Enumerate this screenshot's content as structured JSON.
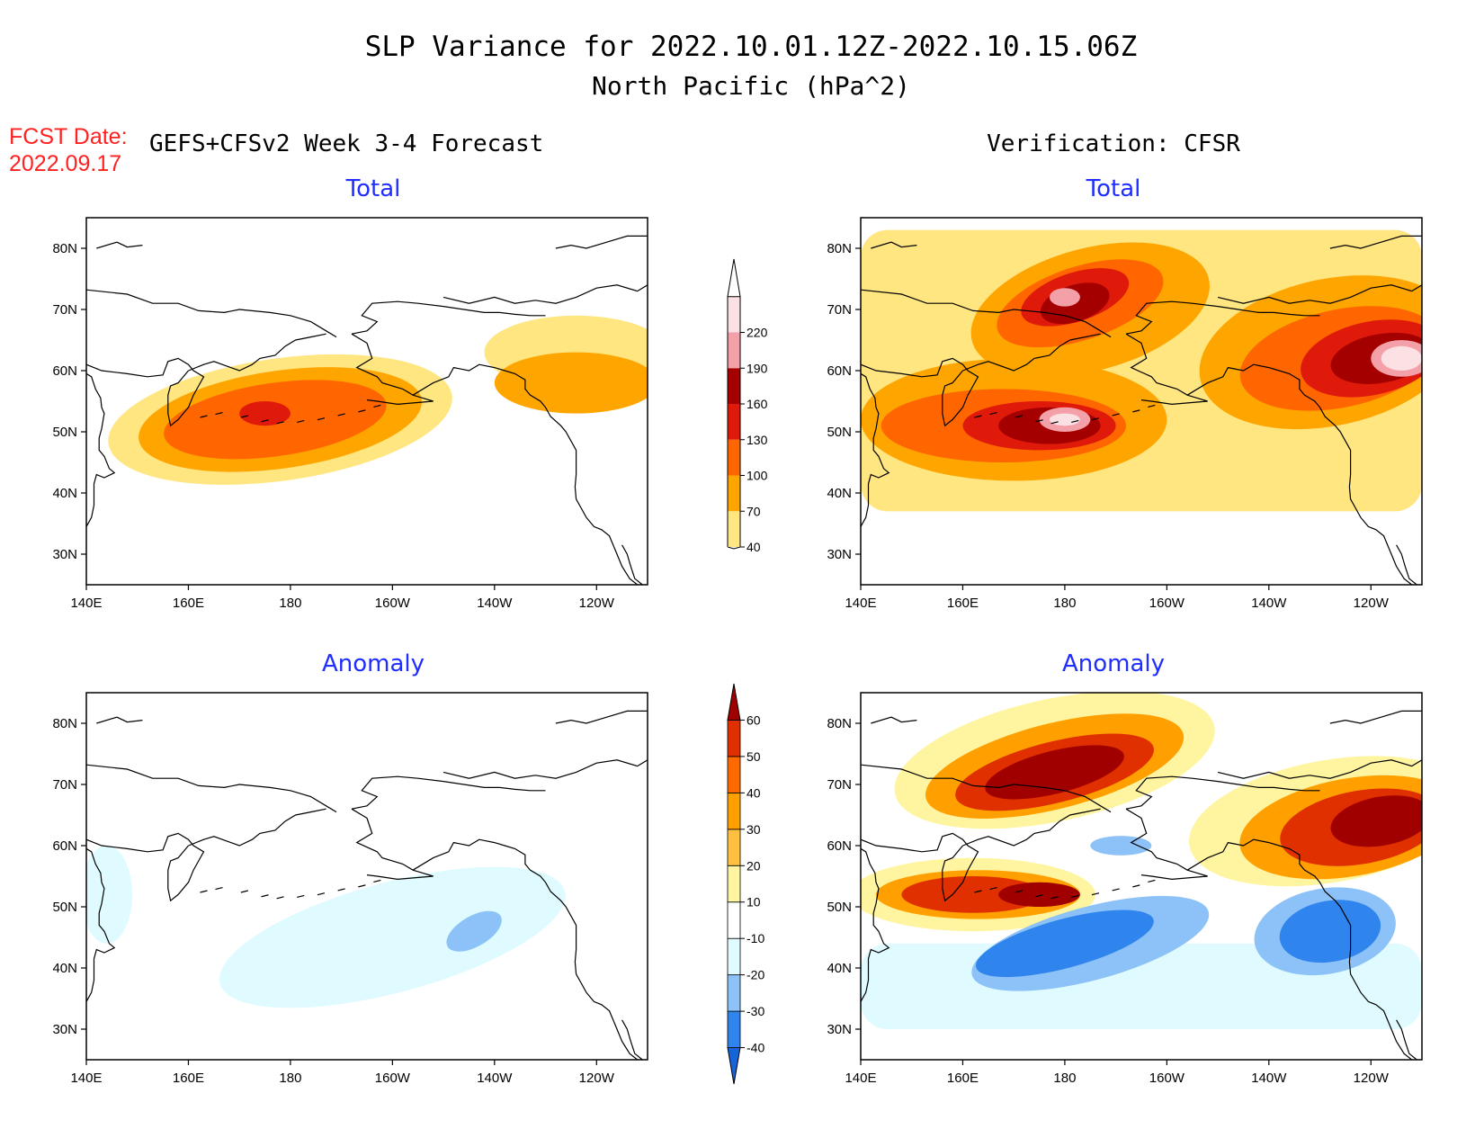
{
  "header": {
    "title_line1": "SLP Variance for 2022.10.01.12Z-2022.10.15.06Z",
    "title_line2": "North Pacific (hPa^2)",
    "fcst_label": "FCST Date:",
    "fcst_date": "2022.09.17",
    "left_heading": "GEFS+CFSv2 Week 3-4 Forecast",
    "right_heading": "Verification: CFSR"
  },
  "panels": [
    {
      "id": "fcst-total",
      "title": "Total"
    },
    {
      "id": "cfsr-total",
      "title": "Total"
    },
    {
      "id": "fcst-anomaly",
      "title": "Anomaly"
    },
    {
      "id": "cfsr-anomaly",
      "title": "Anomaly"
    }
  ],
  "axes": {
    "lon_labels": [
      "140E",
      "160E",
      "180",
      "160W",
      "140W",
      "120W"
    ],
    "lat_labels": [
      "80N",
      "70N",
      "60N",
      "50N",
      "40N",
      "30N"
    ],
    "lon_range": [
      140,
      250
    ],
    "lat_range": [
      25,
      85
    ]
  },
  "colorbars": {
    "total": {
      "levels": [
        "40",
        "70",
        "100",
        "130",
        "160",
        "190",
        "220"
      ],
      "colors": [
        "#ffe680",
        "#ffa500",
        "#ff6600",
        "#e01a0a",
        "#a50000",
        "#f4a0a8",
        "#fbe0e4"
      ]
    },
    "anomaly": {
      "levels": [
        "-40",
        "-30",
        "-20",
        "-10",
        "10",
        "20",
        "30",
        "40",
        "50",
        "60"
      ],
      "colors": [
        "#1565d8",
        "#2f84ee",
        "#8cc2f7",
        "#dffbff",
        "#ffffff",
        "#fff5a0",
        "#ffc040",
        "#ffa000",
        "#ff6a00",
        "#e03000",
        "#a00000"
      ]
    }
  },
  "chart_data": [
    {
      "type": "heatmap",
      "title": "Total",
      "subtitle": "GEFS+CFSv2 Week 3-4 Forecast",
      "units": "hPa^2",
      "features": [
        {
          "shape": "ellipse",
          "center_lon": 178,
          "center_lat": 52,
          "rx_deg": 34,
          "ry_deg": 10,
          "rotate": -8,
          "value": 40
        },
        {
          "shape": "ellipse",
          "center_lon": 236,
          "center_lat": 63,
          "rx_deg": 18,
          "ry_deg": 6,
          "rotate": 0,
          "value": 40
        },
        {
          "shape": "ellipse",
          "center_lon": 178,
          "center_lat": 52,
          "rx_deg": 28,
          "ry_deg": 8,
          "rotate": -8,
          "value": 70
        },
        {
          "shape": "ellipse",
          "center_lon": 236,
          "center_lat": 58,
          "rx_deg": 16,
          "ry_deg": 5,
          "rotate": 0,
          "value": 70
        },
        {
          "shape": "ellipse",
          "center_lon": 177,
          "center_lat": 52,
          "rx_deg": 22,
          "ry_deg": 6,
          "rotate": -8,
          "value": 100
        },
        {
          "shape": "ellipse",
          "center_lon": 175,
          "center_lat": 53,
          "rx_deg": 5,
          "ry_deg": 2,
          "rotate": 0,
          "value": 130
        }
      ]
    },
    {
      "type": "heatmap",
      "title": "Total",
      "subtitle": "Verification: CFSR",
      "units": "hPa^2",
      "features": [
        {
          "shape": "rect",
          "lon1": 140,
          "lat1": 37,
          "lon2": 250,
          "lat2": 83,
          "value": 40
        },
        {
          "shape": "ellipse",
          "center_lon": 185,
          "center_lat": 70,
          "rx_deg": 24,
          "ry_deg": 10,
          "rotate": -15,
          "value": 70
        },
        {
          "shape": "ellipse",
          "center_lon": 170,
          "center_lat": 52,
          "rx_deg": 30,
          "ry_deg": 10,
          "rotate": 0,
          "value": 70
        },
        {
          "shape": "ellipse",
          "center_lon": 232,
          "center_lat": 63,
          "rx_deg": 26,
          "ry_deg": 12,
          "rotate": -12,
          "value": 70
        },
        {
          "shape": "ellipse",
          "center_lon": 183,
          "center_lat": 71,
          "rx_deg": 17,
          "ry_deg": 6,
          "rotate": -18,
          "value": 100
        },
        {
          "shape": "ellipse",
          "center_lon": 168,
          "center_lat": 51,
          "rx_deg": 24,
          "ry_deg": 6,
          "rotate": 0,
          "value": 100
        },
        {
          "shape": "ellipse",
          "center_lon": 234,
          "center_lat": 62,
          "rx_deg": 20,
          "ry_deg": 8,
          "rotate": -12,
          "value": 100
        },
        {
          "shape": "ellipse",
          "center_lon": 182,
          "center_lat": 72,
          "rx_deg": 11,
          "ry_deg": 4,
          "rotate": -18,
          "value": 130
        },
        {
          "shape": "ellipse",
          "center_lon": 175,
          "center_lat": 51,
          "rx_deg": 15,
          "ry_deg": 4,
          "rotate": 0,
          "value": 130
        },
        {
          "shape": "ellipse",
          "center_lon": 240,
          "center_lat": 62,
          "rx_deg": 14,
          "ry_deg": 6,
          "rotate": -12,
          "value": 130
        },
        {
          "shape": "ellipse",
          "center_lon": 182,
          "center_lat": 71,
          "rx_deg": 7,
          "ry_deg": 3,
          "rotate": -18,
          "value": 160
        },
        {
          "shape": "ellipse",
          "center_lon": 177,
          "center_lat": 51,
          "rx_deg": 10,
          "ry_deg": 3,
          "rotate": 0,
          "value": 160
        },
        {
          "shape": "ellipse",
          "center_lon": 242,
          "center_lat": 62,
          "rx_deg": 10,
          "ry_deg": 4,
          "rotate": -10,
          "value": 160
        },
        {
          "shape": "ellipse",
          "center_lon": 180,
          "center_lat": 72,
          "rx_deg": 3,
          "ry_deg": 1.5,
          "rotate": 0,
          "value": 190
        },
        {
          "shape": "ellipse",
          "center_lon": 180,
          "center_lat": 52,
          "rx_deg": 5,
          "ry_deg": 2,
          "rotate": 0,
          "value": 190
        },
        {
          "shape": "ellipse",
          "center_lon": 246,
          "center_lat": 62,
          "rx_deg": 6,
          "ry_deg": 3,
          "rotate": 0,
          "value": 190
        },
        {
          "shape": "ellipse",
          "center_lon": 180,
          "center_lat": 52,
          "rx_deg": 3,
          "ry_deg": 1,
          "rotate": 0,
          "value": 220
        },
        {
          "shape": "ellipse",
          "center_lon": 246,
          "center_lat": 62,
          "rx_deg": 4,
          "ry_deg": 2,
          "rotate": 0,
          "value": 220
        }
      ]
    },
    {
      "type": "heatmap",
      "title": "Anomaly",
      "subtitle": "GEFS+CFSv2 Week 3-4 Forecast",
      "units": "hPa^2",
      "features": [
        {
          "shape": "ellipse",
          "center_lon": 200,
          "center_lat": 45,
          "rx_deg": 35,
          "ry_deg": 9,
          "rotate": -15,
          "value": -10
        },
        {
          "shape": "ellipse",
          "center_lon": 144,
          "center_lat": 52,
          "rx_deg": 5,
          "ry_deg": 8,
          "rotate": 0,
          "value": -10
        },
        {
          "shape": "ellipse",
          "center_lon": 216,
          "center_lat": 46,
          "rx_deg": 6,
          "ry_deg": 2.5,
          "rotate": -30,
          "value": -20
        }
      ]
    },
    {
      "type": "heatmap",
      "title": "Anomaly",
      "subtitle": "Verification: CFSR",
      "units": "hPa^2",
      "features": [
        {
          "shape": "rect",
          "lon1": 140,
          "lat1": 30,
          "lon2": 250,
          "lat2": 44,
          "value": -10
        },
        {
          "shape": "ellipse",
          "center_lon": 178,
          "center_lat": 74,
          "rx_deg": 32,
          "ry_deg": 10,
          "rotate": -12,
          "value": 10
        },
        {
          "shape": "ellipse",
          "center_lon": 162,
          "center_lat": 52,
          "rx_deg": 24,
          "ry_deg": 6,
          "rotate": 0,
          "value": 10
        },
        {
          "shape": "ellipse",
          "center_lon": 232,
          "center_lat": 64,
          "rx_deg": 28,
          "ry_deg": 10,
          "rotate": -10,
          "value": 10
        },
        {
          "shape": "ellipse",
          "center_lon": 178,
          "center_lat": 73,
          "rx_deg": 26,
          "ry_deg": 7,
          "rotate": -14,
          "value": 30
        },
        {
          "shape": "ellipse",
          "center_lon": 163,
          "center_lat": 52,
          "rx_deg": 20,
          "ry_deg": 4,
          "rotate": 0,
          "value": 30
        },
        {
          "shape": "ellipse",
          "center_lon": 236,
          "center_lat": 63,
          "rx_deg": 22,
          "ry_deg": 8,
          "rotate": -10,
          "value": 30
        },
        {
          "shape": "ellipse",
          "center_lon": 178,
          "center_lat": 72,
          "rx_deg": 20,
          "ry_deg": 5,
          "rotate": -14,
          "value": 50
        },
        {
          "shape": "ellipse",
          "center_lon": 162,
          "center_lat": 52,
          "rx_deg": 14,
          "ry_deg": 3,
          "rotate": 0,
          "value": 50
        },
        {
          "shape": "ellipse",
          "center_lon": 238,
          "center_lat": 63,
          "rx_deg": 16,
          "ry_deg": 6,
          "rotate": -10,
          "value": 50
        },
        {
          "shape": "ellipse",
          "center_lon": 178,
          "center_lat": 72,
          "rx_deg": 14,
          "ry_deg": 3.5,
          "rotate": -14,
          "value": 60
        },
        {
          "shape": "ellipse",
          "center_lon": 242,
          "center_lat": 64,
          "rx_deg": 10,
          "ry_deg": 4,
          "rotate": -10,
          "value": 60
        },
        {
          "shape": "ellipse",
          "center_lon": 175,
          "center_lat": 52,
          "rx_deg": 8,
          "ry_deg": 2,
          "rotate": 0,
          "value": 60
        },
        {
          "shape": "ellipse",
          "center_lon": 185,
          "center_lat": 44,
          "rx_deg": 24,
          "ry_deg": 6,
          "rotate": -15,
          "value": -20
        },
        {
          "shape": "ellipse",
          "center_lon": 231,
          "center_lat": 46,
          "rx_deg": 14,
          "ry_deg": 7,
          "rotate": -10,
          "value": -20
        },
        {
          "shape": "ellipse",
          "center_lon": 180,
          "center_lat": 44,
          "rx_deg": 18,
          "ry_deg": 4,
          "rotate": -15,
          "value": -30
        },
        {
          "shape": "ellipse",
          "center_lon": 232,
          "center_lat": 46,
          "rx_deg": 10,
          "ry_deg": 5,
          "rotate": -10,
          "value": -30
        },
        {
          "shape": "ellipse",
          "center_lon": 191,
          "center_lat": 60,
          "rx_deg": 6,
          "ry_deg": 1.6,
          "rotate": 0,
          "value": -20
        }
      ]
    }
  ]
}
